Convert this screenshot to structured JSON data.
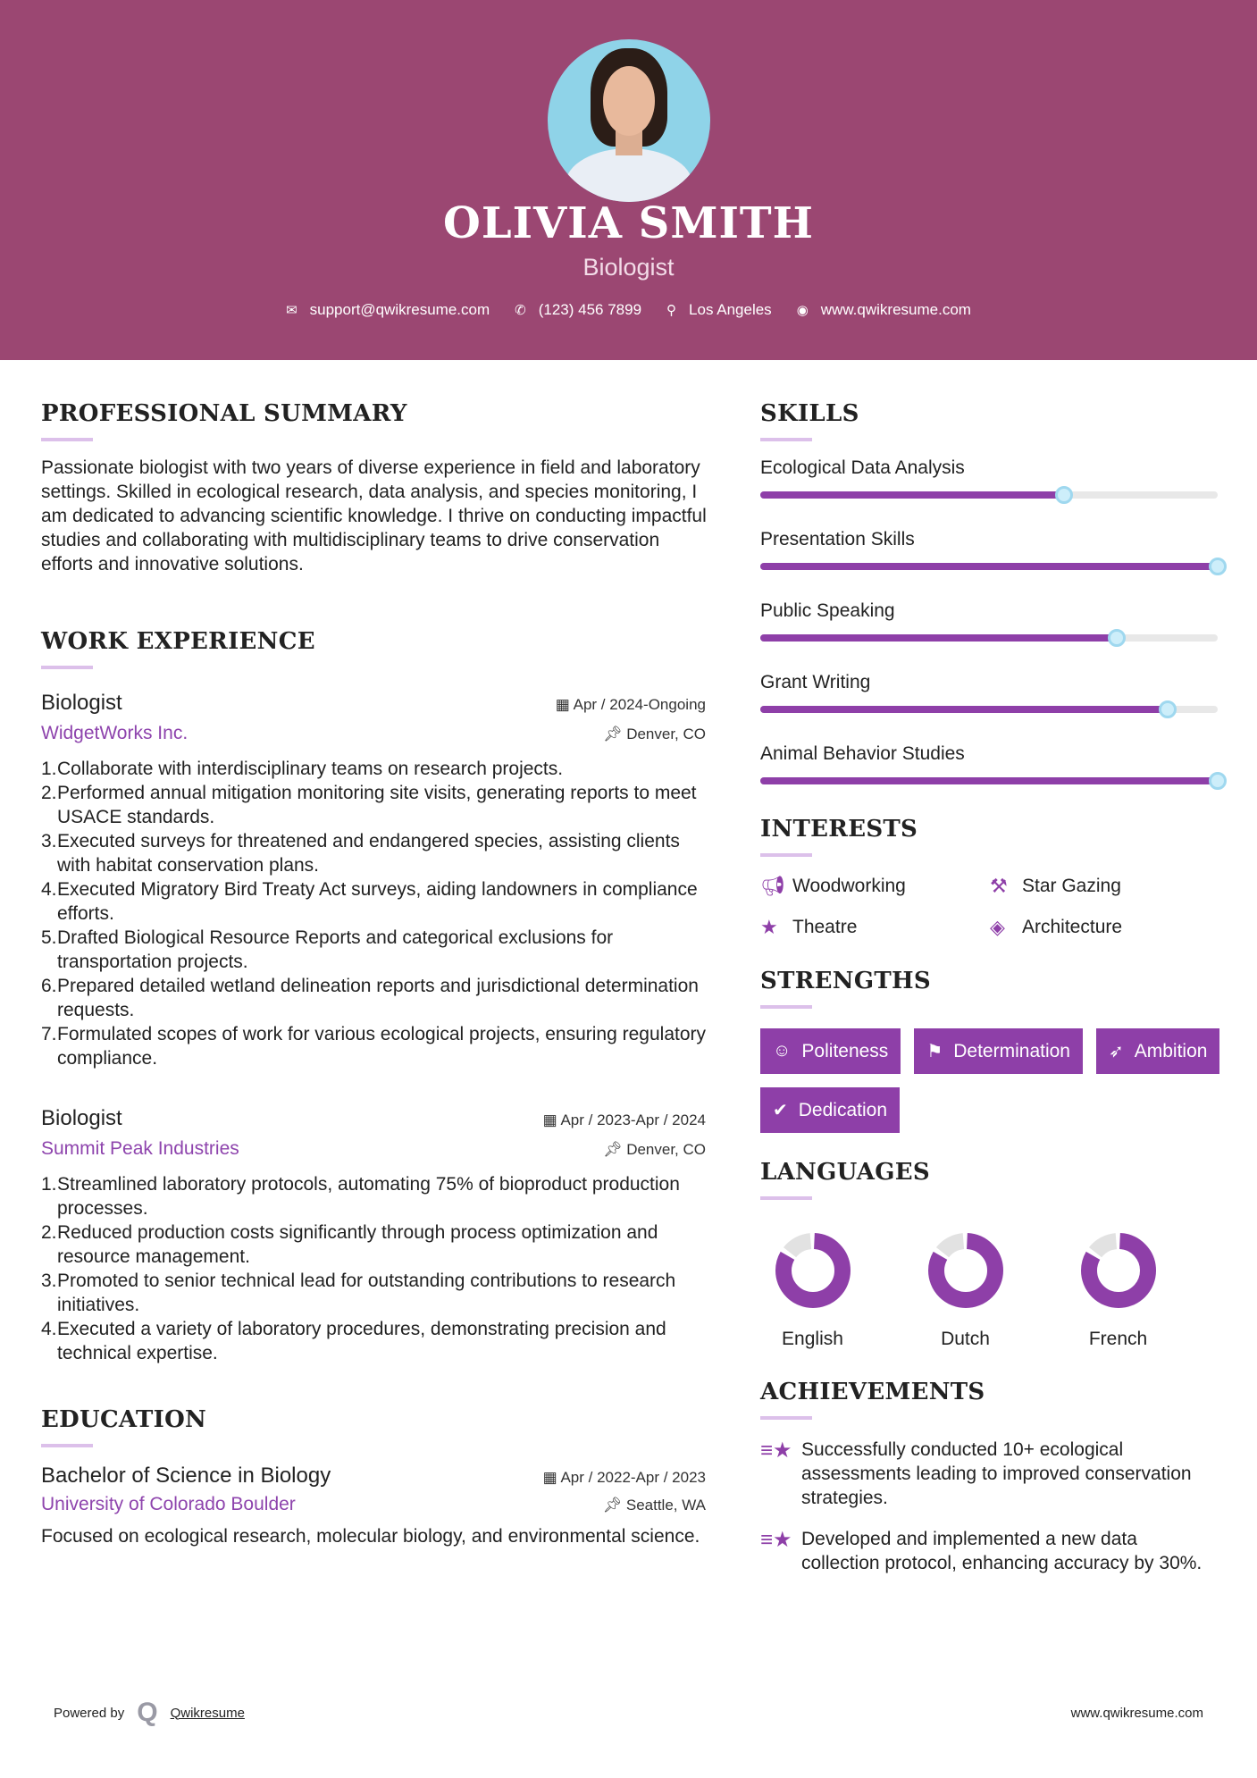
{
  "header": {
    "name": "OLIVIA SMITH",
    "role": "Biologist",
    "email": "support@qwikresume.com",
    "phone": "(123) 456 7899",
    "location": "Los Angeles",
    "website": "www.qwikresume.com"
  },
  "colors": {
    "header_bg": "#9b4772",
    "accent": "#8e3fa8",
    "underline": "#dcc0ea"
  },
  "summary": {
    "heading": "PROFESSIONAL SUMMARY",
    "text": "Passionate biologist with two years of diverse experience in field and laboratory settings. Skilled in ecological research, data analysis, and species monitoring, I am dedicated to advancing scientific knowledge. I thrive on conducting impactful studies and collaborating with multidisciplinary teams to drive conservation efforts and innovative solutions."
  },
  "experience": {
    "heading": "WORK EXPERIENCE",
    "jobs": [
      {
        "title": "Biologist",
        "dates": "Apr / 2024-Ongoing",
        "company": "WidgetWorks Inc.",
        "location": "Denver, CO",
        "bullets": [
          "Collaborate with interdisciplinary teams on research projects.",
          "Performed annual mitigation monitoring site visits, generating reports to meet USACE standards.",
          "Executed surveys for threatened and endangered species, assisting clients with habitat conservation plans.",
          "Executed Migratory Bird Treaty Act surveys, aiding landowners in compliance efforts.",
          "Drafted Biological Resource Reports and categorical exclusions for transportation projects.",
          "Prepared detailed wetland delineation reports and jurisdictional determination requests.",
          "Formulated scopes of work for various ecological projects, ensuring regulatory compliance."
        ]
      },
      {
        "title": "Biologist",
        "dates": "Apr / 2023-Apr / 2024",
        "company": "Summit Peak Industries",
        "location": "Denver, CO",
        "bullets": [
          "Streamlined laboratory protocols, automating 75% of bioproduct production processes.",
          "Reduced production costs significantly through process optimization and resource management.",
          "Promoted to senior technical lead for outstanding contributions to research initiatives.",
          "Executed a variety of laboratory procedures, demonstrating precision and technical expertise."
        ]
      }
    ]
  },
  "education": {
    "heading": "EDUCATION",
    "degree": "Bachelor of Science in Biology",
    "dates": "Apr / 2022-Apr / 2023",
    "school": "University of Colorado Boulder",
    "location": "Seattle, WA",
    "description": "Focused on ecological research, molecular biology, and environmental science."
  },
  "skills": {
    "heading": "SKILLS",
    "items": [
      {
        "label": "Ecological Data Analysis",
        "level": 0.665
      },
      {
        "label": "Presentation Skills",
        "level": 1.0
      },
      {
        "label": "Public Speaking",
        "level": 0.78
      },
      {
        "label": "Grant Writing",
        "level": 0.89
      },
      {
        "label": "Animal Behavior Studies",
        "level": 1.0
      }
    ]
  },
  "interests": {
    "heading": "INTERESTS",
    "items": [
      {
        "label": "Woodworking",
        "icon": "megaphone-icon"
      },
      {
        "label": "Star Gazing",
        "icon": "gavel-icon"
      },
      {
        "label": "Theatre",
        "icon": "star-icon"
      },
      {
        "label": "Architecture",
        "icon": "ticket-icon"
      }
    ]
  },
  "strengths": {
    "heading": "STRENGTHS",
    "items": [
      {
        "label": "Politeness",
        "icon": "smile-icon"
      },
      {
        "label": "Determination",
        "icon": "flag-checkered-icon"
      },
      {
        "label": "Ambition",
        "icon": "rocket-icon"
      },
      {
        "label": "Dedication",
        "icon": "check-circle-icon"
      }
    ]
  },
  "languages": {
    "heading": "LANGUAGES",
    "items": [
      {
        "label": "English",
        "level": 0.84
      },
      {
        "label": "Dutch",
        "level": 0.84
      },
      {
        "label": "French",
        "level": 0.84
      }
    ]
  },
  "achievements": {
    "heading": "ACHIEVEMENTS",
    "items": [
      "Successfully conducted 10+ ecological assessments leading to improved conservation strategies.",
      "Developed and implemented a new data collection protocol, enhancing accuracy by 30%."
    ]
  },
  "footer": {
    "powered_by": "Powered by",
    "brand": "Qwikresume",
    "website": "www.qwikresume.com"
  }
}
